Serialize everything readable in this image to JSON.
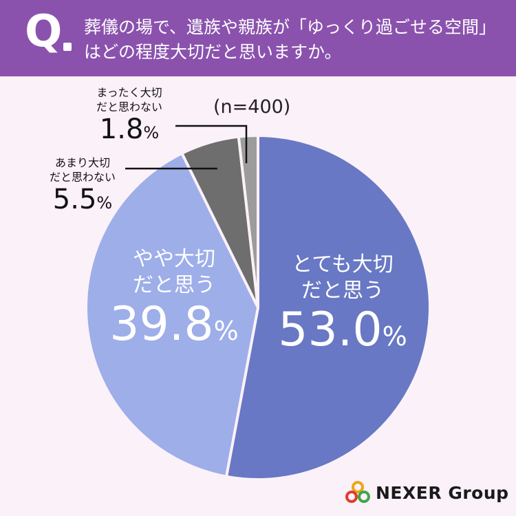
{
  "header": {
    "q_mark": "Q",
    "question": "葬儀の場で、遺族や親族が「ゆっくり過ごせる空間」はどの程度大切だと思いますか。"
  },
  "sample_size": "(n=400)",
  "logo": {
    "brand": "NEXER",
    "suffix": "Group"
  },
  "colors": {
    "header_bg": "#8a52ad",
    "background": "#fbf1f8",
    "very_important": "#6878c4",
    "somewhat_important": "#9daee9",
    "not_very_important": "#6e6e6e",
    "not_important": "#9c9c9c"
  },
  "labels": {
    "very_important": {
      "line1": "とても大切",
      "line2": "だと思う",
      "value": "53.0",
      "unit": "%"
    },
    "somewhat_important": {
      "line1": "やや大切",
      "line2": "だと思う",
      "value": "39.8",
      "unit": "%"
    },
    "not_very_important": {
      "line1": "あまり大切",
      "line2": "だと思わない",
      "value": "5.5",
      "unit": "%"
    },
    "not_important": {
      "line1": "まったく大切",
      "line2": "だと思わない",
      "value": "1.8",
      "unit": "%"
    }
  },
  "chart_data": {
    "type": "pie",
    "title": "葬儀の場で、遺族や親族が「ゆっくり過ごせる空間」はどの程度大切だと思いますか。",
    "n": 400,
    "unit": "%",
    "start": "12 o'clock, clockwise",
    "categories": [
      "とても大切だと思う",
      "やや大切だと思う",
      "あまり大切だと思わない",
      "まったく大切だと思わない"
    ],
    "values": [
      53.0,
      39.8,
      5.5,
      1.8
    ],
    "slice_colors": [
      "#6878c4",
      "#9daee9",
      "#6e6e6e",
      "#9c9c9c"
    ]
  }
}
